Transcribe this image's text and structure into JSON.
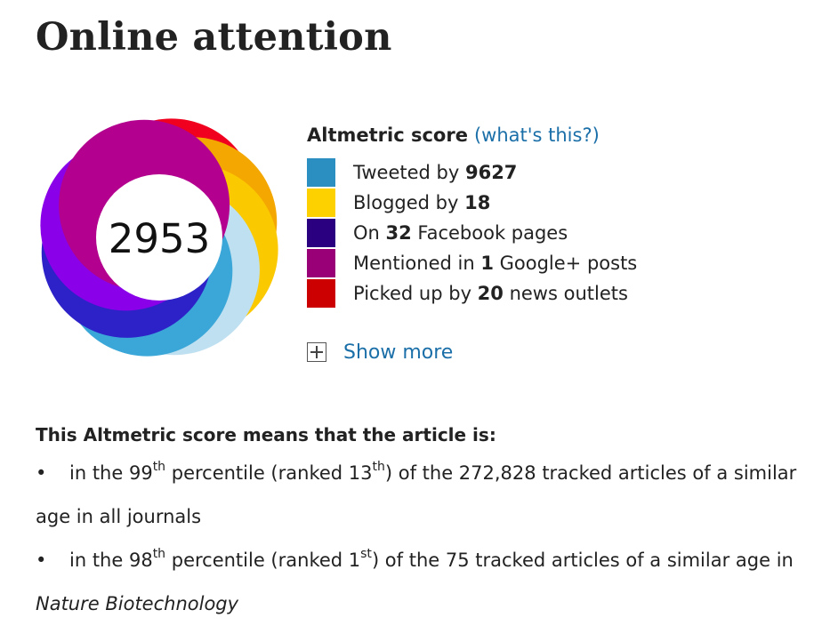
{
  "page": {
    "title": "Online attention"
  },
  "altmetric": {
    "score": "2953",
    "label": "Altmetric score",
    "help_link": "(what's this?)",
    "legend": [
      {
        "pre": "Tweeted by ",
        "count": "9627",
        "post": "",
        "color": "#2b8fc2"
      },
      {
        "pre": "Blogged by ",
        "count": "18",
        "post": "",
        "color": "#fdd000"
      },
      {
        "pre": "On ",
        "count": "32",
        "post": " Facebook pages",
        "color": "#2a0080"
      },
      {
        "pre": "Mentioned in ",
        "count": "1",
        "post": " Google+ posts",
        "color": "#990077"
      },
      {
        "pre": "Picked up by ",
        "count": "20",
        "post": " news outlets",
        "color": "#cc0000"
      }
    ],
    "show_more": "Show more",
    "ring_colors": [
      "#f0001e",
      "#f4a700",
      "#fbc900",
      "#bfe0f0",
      "#3ba7d8",
      "#2d22c7",
      "#8a00e8",
      "#b3008f"
    ]
  },
  "meaning": {
    "heading": "This Altmetric score means that the article is:",
    "items": [
      {
        "bullet": "•",
        "a": "in the 99",
        "a_sup": "th",
        "b": " percentile (ranked 13",
        "b_sup": "th",
        "c": ") of the 272,828 tracked articles of a similar age in all journals",
        "journal": ""
      },
      {
        "bullet": "•",
        "a": "in the 98",
        "a_sup": "th",
        "b": " percentile (ranked 1",
        "b_sup": "st",
        "c": ") of the 75 tracked articles of a similar age in ",
        "journal": "Nature Biotechnology"
      }
    ]
  }
}
